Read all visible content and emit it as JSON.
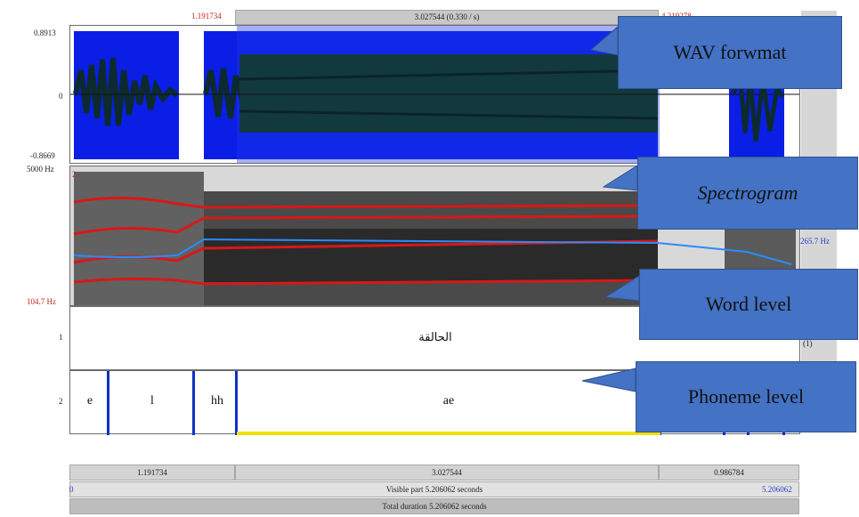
{
  "selection": {
    "start": "1.191734",
    "duration": "3.027544 (0.330 / s)",
    "end": "4.219278"
  },
  "waveform": {
    "max": "0.8913",
    "zero": "0",
    "min": "-0.8669"
  },
  "spectrogram": {
    "top_freq": "5000 Hz",
    "bottom_freq": "104.7 Hz",
    "cursor_freq": "265.7 Hz",
    "top_mark": "2"
  },
  "tier1": {
    "number": "1",
    "word": "الحالقة",
    "count": "(1)"
  },
  "tier2": {
    "number": "2",
    "phonemes": [
      "e",
      "l",
      "hh",
      "ae"
    ]
  },
  "bottom": {
    "seg_left": "1.191734",
    "seg_mid": "3.027544",
    "seg_right": "0.986784",
    "visible_start": "0",
    "visible_label": "Visible part 5.206062 seconds",
    "visible_end": "5.206062",
    "total_label": "Total duration 5.206062 seconds"
  },
  "callouts": {
    "wav": "WAV forwmat",
    "spectrogram": "Spectrogram",
    "word": "Word level",
    "phoneme": "Phoneme level"
  },
  "colors": {
    "callout": "#4472c4",
    "selection_blue": "#0a1ee6",
    "waveform": "#0d2b2e",
    "formant": "#d81818",
    "pitch": "#2a8cff"
  }
}
